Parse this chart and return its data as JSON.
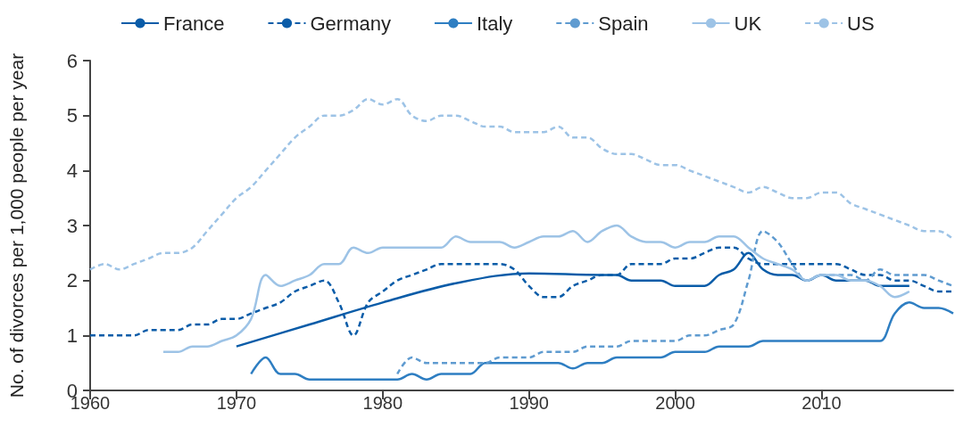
{
  "chart_data": {
    "type": "line",
    "ylabel": "No. of divorces per 1,000 people per year",
    "xlim": [
      1960,
      2019
    ],
    "xticks": [
      1960,
      1970,
      1980,
      1990,
      2000,
      2010
    ],
    "ylim": [
      0,
      6
    ],
    "yticks": [
      0,
      1,
      2,
      3,
      4,
      5,
      6
    ],
    "grid": false,
    "legend": "top",
    "marker": "none",
    "series": [
      {
        "name": "France",
        "color": "#0a5ca8",
        "line_style": "solid",
        "x": [
          1970,
          1975,
          1980,
          1985,
          1990,
          1995,
          1996,
          1997,
          1998,
          1999,
          2000,
          2001,
          2002,
          2003,
          2004,
          2005,
          2006,
          2007,
          2008,
          2009,
          2010,
          2011,
          2012,
          2013,
          2014,
          2015,
          2016
        ],
        "values": [
          0.8,
          1.2,
          1.6,
          1.95,
          2.13,
          2.1,
          2.1,
          2.0,
          2.0,
          2.0,
          1.9,
          1.9,
          1.9,
          2.1,
          2.2,
          2.5,
          2.2,
          2.1,
          2.1,
          2.0,
          2.1,
          2.0,
          2.0,
          2.0,
          1.9,
          1.9,
          1.9
        ]
      },
      {
        "name": "Germany",
        "color": "#0a5ca8",
        "line_style": "dashed",
        "x": [
          1960,
          1961,
          1962,
          1963,
          1964,
          1965,
          1966,
          1967,
          1968,
          1969,
          1970,
          1971,
          1972,
          1973,
          1974,
          1975,
          1976,
          1977,
          1978,
          1979,
          1980,
          1981,
          1982,
          1983,
          1984,
          1985,
          1986,
          1987,
          1988,
          1989,
          1990,
          1991,
          1992,
          1993,
          1994,
          1995,
          1996,
          1997,
          1998,
          1999,
          2000,
          2001,
          2002,
          2003,
          2004,
          2005,
          2006,
          2007,
          2008,
          2009,
          2010,
          2011,
          2012,
          2013,
          2014,
          2015,
          2016,
          2017,
          2018,
          2019
        ],
        "values": [
          1.0,
          1.0,
          1.0,
          1.0,
          1.1,
          1.1,
          1.1,
          1.2,
          1.2,
          1.3,
          1.3,
          1.4,
          1.5,
          1.6,
          1.8,
          1.9,
          2.0,
          1.6,
          1.0,
          1.6,
          1.8,
          2.0,
          2.1,
          2.2,
          2.3,
          2.3,
          2.3,
          2.3,
          2.3,
          2.2,
          1.9,
          1.7,
          1.7,
          1.9,
          2.0,
          2.1,
          2.1,
          2.3,
          2.3,
          2.3,
          2.4,
          2.4,
          2.5,
          2.6,
          2.6,
          2.4,
          2.3,
          2.3,
          2.3,
          2.3,
          2.3,
          2.3,
          2.2,
          2.1,
          2.1,
          2.0,
          2.0,
          1.9,
          1.8,
          1.8
        ]
      },
      {
        "name": "Italy",
        "color": "#2e7ec2",
        "line_style": "solid",
        "x": [
          1971,
          1972,
          1973,
          1974,
          1975,
          1976,
          1977,
          1978,
          1979,
          1980,
          1981,
          1982,
          1983,
          1984,
          1985,
          1986,
          1987,
          1988,
          1989,
          1990,
          1991,
          1992,
          1993,
          1994,
          1995,
          1996,
          1997,
          1998,
          1999,
          2000,
          2001,
          2002,
          2003,
          2004,
          2005,
          2006,
          2007,
          2008,
          2009,
          2010,
          2011,
          2012,
          2013,
          2014,
          2015,
          2016,
          2017,
          2018,
          2019
        ],
        "values": [
          0.3,
          0.6,
          0.3,
          0.3,
          0.2,
          0.2,
          0.2,
          0.2,
          0.2,
          0.2,
          0.2,
          0.3,
          0.2,
          0.3,
          0.3,
          0.3,
          0.5,
          0.5,
          0.5,
          0.5,
          0.5,
          0.5,
          0.4,
          0.5,
          0.5,
          0.6,
          0.6,
          0.6,
          0.6,
          0.7,
          0.7,
          0.7,
          0.8,
          0.8,
          0.8,
          0.9,
          0.9,
          0.9,
          0.9,
          0.9,
          0.9,
          0.9,
          0.9,
          0.9,
          1.4,
          1.6,
          1.5,
          1.5,
          1.4
        ]
      },
      {
        "name": "Spain",
        "color": "#5f9bd0",
        "line_style": "dashed",
        "x": [
          1981,
          1982,
          1983,
          1984,
          1985,
          1986,
          1987,
          1988,
          1989,
          1990,
          1991,
          1992,
          1993,
          1994,
          1995,
          1996,
          1997,
          1998,
          1999,
          2000,
          2001,
          2002,
          2003,
          2004,
          2005,
          2006,
          2007,
          2008,
          2009,
          2010,
          2011,
          2012,
          2013,
          2014,
          2015,
          2016,
          2017,
          2018,
          2019
        ],
        "values": [
          0.3,
          0.6,
          0.5,
          0.5,
          0.5,
          0.5,
          0.5,
          0.6,
          0.6,
          0.6,
          0.7,
          0.7,
          0.7,
          0.8,
          0.8,
          0.8,
          0.9,
          0.9,
          0.9,
          0.9,
          1.0,
          1.0,
          1.1,
          1.2,
          2.0,
          2.9,
          2.7,
          2.3,
          2.0,
          2.1,
          2.1,
          2.1,
          2.0,
          2.2,
          2.1,
          2.1,
          2.1,
          2.0,
          1.9
        ]
      },
      {
        "name": "UK",
        "color": "#9dc3e6",
        "line_style": "solid",
        "x": [
          1965,
          1966,
          1967,
          1968,
          1969,
          1970,
          1971,
          1972,
          1973,
          1974,
          1975,
          1976,
          1977,
          1978,
          1979,
          1980,
          1981,
          1982,
          1983,
          1984,
          1985,
          1986,
          1987,
          1988,
          1989,
          1990,
          1991,
          1992,
          1993,
          1994,
          1995,
          1996,
          1997,
          1998,
          1999,
          2000,
          2001,
          2002,
          2003,
          2004,
          2005,
          2006,
          2007,
          2008,
          2009,
          2010,
          2011,
          2012,
          2013,
          2014,
          2015,
          2016
        ],
        "values": [
          0.7,
          0.7,
          0.8,
          0.8,
          0.9,
          1.0,
          1.3,
          2.1,
          1.9,
          2.0,
          2.1,
          2.3,
          2.3,
          2.6,
          2.5,
          2.6,
          2.6,
          2.6,
          2.6,
          2.6,
          2.8,
          2.7,
          2.7,
          2.7,
          2.6,
          2.7,
          2.8,
          2.8,
          2.9,
          2.7,
          2.9,
          3.0,
          2.8,
          2.7,
          2.7,
          2.6,
          2.7,
          2.7,
          2.8,
          2.8,
          2.6,
          2.4,
          2.3,
          2.2,
          2.0,
          2.1,
          2.1,
          2.0,
          2.0,
          1.9,
          1.7,
          1.8
        ]
      },
      {
        "name": "US",
        "color": "#9dc3e6",
        "line_style": "dashed",
        "x": [
          1960,
          1961,
          1962,
          1963,
          1964,
          1965,
          1966,
          1967,
          1968,
          1969,
          1970,
          1971,
          1972,
          1973,
          1974,
          1975,
          1976,
          1977,
          1978,
          1979,
          1980,
          1981,
          1982,
          1983,
          1984,
          1985,
          1986,
          1987,
          1988,
          1989,
          1990,
          1991,
          1992,
          1993,
          1994,
          1995,
          1996,
          1997,
          1998,
          1999,
          2000,
          2001,
          2002,
          2003,
          2004,
          2005,
          2006,
          2007,
          2008,
          2009,
          2010,
          2011,
          2012,
          2013,
          2014,
          2015,
          2016,
          2017,
          2018,
          2019
        ],
        "values": [
          2.2,
          2.3,
          2.2,
          2.3,
          2.4,
          2.5,
          2.5,
          2.6,
          2.9,
          3.2,
          3.5,
          3.7,
          4.0,
          4.3,
          4.6,
          4.8,
          5.0,
          5.0,
          5.1,
          5.3,
          5.2,
          5.3,
          5.0,
          4.9,
          5.0,
          5.0,
          4.9,
          4.8,
          4.8,
          4.7,
          4.7,
          4.7,
          4.8,
          4.6,
          4.6,
          4.4,
          4.3,
          4.3,
          4.2,
          4.1,
          4.1,
          4.0,
          3.9,
          3.8,
          3.7,
          3.6,
          3.7,
          3.6,
          3.5,
          3.5,
          3.6,
          3.6,
          3.4,
          3.3,
          3.2,
          3.1,
          3.0,
          2.9,
          2.9,
          2.75
        ]
      }
    ]
  }
}
